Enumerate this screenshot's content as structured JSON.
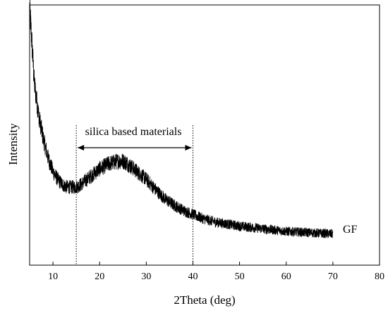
{
  "chart_data": {
    "type": "line",
    "title": "",
    "xlabel": "2Theta (deg)",
    "ylabel": "Intensity",
    "xlim": [
      5,
      80
    ],
    "ylim": [
      0,
      100
    ],
    "x_ticks": [
      10,
      20,
      30,
      40,
      50,
      60,
      70,
      80
    ],
    "x_tick_labels": [
      "10",
      "20",
      "30",
      "40",
      "50",
      "60",
      "70",
      "80"
    ],
    "y_tick_labels_shown": false,
    "grid": false,
    "legend": "none",
    "noisy_trace": true,
    "series": [
      {
        "name": "GF",
        "color": "#000000",
        "x": [
          5,
          5.5,
          6,
          7,
          8,
          9,
          10,
          11,
          12,
          13,
          14,
          15,
          16,
          18,
          20,
          22,
          24,
          25,
          26,
          28,
          30,
          32,
          34,
          36,
          38,
          40,
          42,
          45,
          50,
          55,
          60,
          65,
          70
        ],
        "y": [
          99,
          85,
          70,
          57,
          48,
          41,
          36,
          33,
          31,
          30,
          30,
          30,
          31,
          34,
          37,
          39,
          40,
          40,
          39,
          36,
          33,
          29,
          25.5,
          23,
          21,
          19.5,
          18,
          16.5,
          15,
          14,
          13,
          12.5,
          12
        ]
      }
    ],
    "annotations": [
      {
        "text": "silica based materials",
        "x_range": [
          15,
          40
        ],
        "type": "double-arrow-span",
        "markers": "dotted-vertical-lines"
      }
    ],
    "series_label": "GF"
  }
}
